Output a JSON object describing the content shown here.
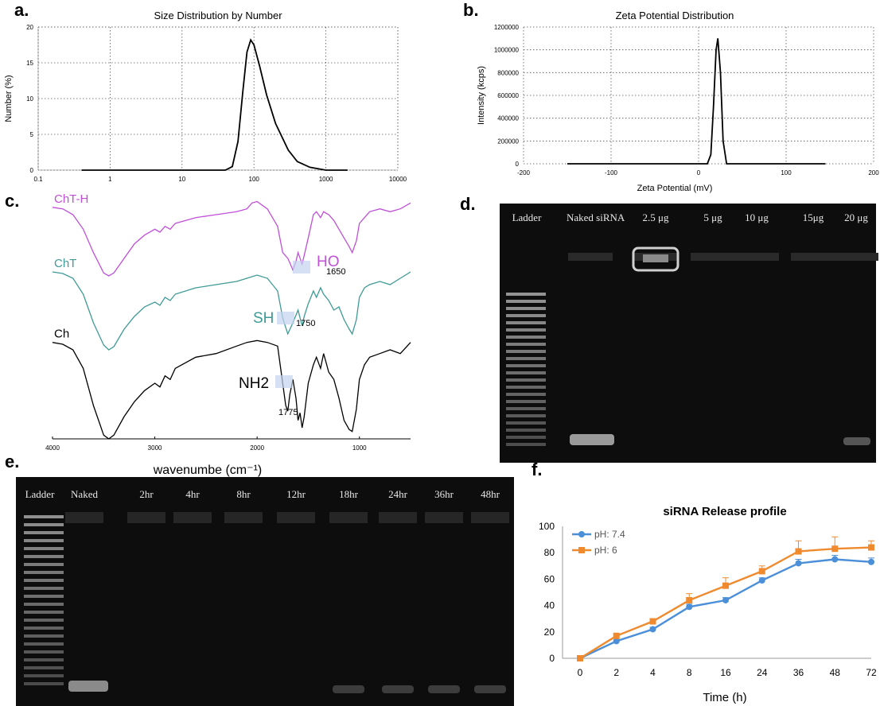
{
  "panels": {
    "a": {
      "letter": "a."
    },
    "b": {
      "letter": "b."
    },
    "c": {
      "letter": "c."
    },
    "d": {
      "letter": "d."
    },
    "e": {
      "letter": "e."
    },
    "f": {
      "letter": "f."
    }
  },
  "gel_d": {
    "lanes": [
      "Ladder",
      "Naked siRNA",
      "2.5 μg",
      "5 μg",
      "10 μg",
      "15μg",
      "20 μg"
    ]
  },
  "gel_e": {
    "lanes": [
      "Ladder",
      "Naked",
      "2hr",
      "4hr",
      "8hr",
      "12hr",
      "18hr",
      "24hr",
      "36hr",
      "48hr"
    ]
  },
  "chart_data": [
    {
      "id": "size",
      "type": "line",
      "title": "Size Distribution by Number",
      "ylabel": "Number (%)",
      "xscale": "log",
      "xlim": [
        0.1,
        10000
      ],
      "ylim": [
        0,
        20
      ],
      "xticks": [
        0.1,
        1,
        10,
        100,
        1000,
        10000
      ],
      "xticklabels": [
        "0.1",
        "1",
        "10",
        "100",
        "1000",
        "10000"
      ],
      "yticks": [
        0,
        5,
        10,
        15,
        20
      ],
      "grid": true,
      "color": "#000000",
      "series": [
        {
          "x": [
            0.4,
            1,
            10,
            40,
            50,
            60,
            70,
            80,
            90,
            100,
            120,
            150,
            200,
            300,
            400,
            600,
            1000,
            2000
          ],
          "y": [
            0,
            0,
            0,
            0,
            0.5,
            4,
            11,
            16.5,
            18.2,
            17.5,
            14.5,
            10.5,
            6.5,
            2.8,
            1.2,
            0.4,
            0,
            0
          ]
        }
      ]
    },
    {
      "id": "zeta",
      "type": "line",
      "title": "Zeta Potential Distribution",
      "xlabel": "Zeta Potential (mV)",
      "ylabel": "Intensity (kcps)",
      "xlim": [
        -200,
        200
      ],
      "ylim": [
        0,
        1200000
      ],
      "xticks": [
        -200,
        -100,
        0,
        100,
        200
      ],
      "yticks": [
        0,
        200000,
        400000,
        600000,
        800000,
        1000000,
        1200000
      ],
      "grid": true,
      "color": "#000000",
      "series": [
        {
          "x": [
            -150,
            0,
            10,
            14,
            17,
            20,
            22,
            25,
            28,
            32,
            40,
            145
          ],
          "y": [
            0,
            0,
            0,
            80000,
            500000,
            1000000,
            1100000,
            800000,
            200000,
            0,
            0,
            0
          ]
        }
      ]
    },
    {
      "id": "ftir",
      "type": "line",
      "xlabel": "wavenumbe (cm⁻¹)",
      "xlim": [
        4000,
        500
      ],
      "xticks": [
        4000,
        3000,
        2000,
        1000
      ],
      "series": [
        {
          "name": "ChT-H",
          "color": "#c050d8",
          "x": [
            4000,
            3900,
            3800,
            3700,
            3600,
            3500,
            3450,
            3400,
            3300,
            3200,
            3100,
            3000,
            2950,
            2900,
            2850,
            2800,
            2600,
            2400,
            2200,
            2100,
            2050,
            2000,
            1900,
            1800,
            1750,
            1700,
            1680,
            1650,
            1620,
            1600,
            1560,
            1540,
            1500,
            1450,
            1420,
            1380,
            1350,
            1300,
            1250,
            1200,
            1150,
            1100,
            1070,
            1030,
            1000,
            950,
            900,
            800,
            700,
            600,
            500
          ],
          "y": [
            93,
            92,
            88,
            78,
            62,
            48,
            46,
            48,
            58,
            68,
            74,
            78,
            76,
            80,
            78,
            82,
            86,
            88,
            90,
            92,
            96,
            97,
            92,
            80,
            62,
            58,
            55,
            50,
            56,
            62,
            54,
            60,
            72,
            88,
            90,
            86,
            90,
            88,
            84,
            78,
            72,
            66,
            62,
            70,
            82,
            86,
            90,
            92,
            90,
            92,
            96
          ]
        },
        {
          "name": "ChT",
          "color": "#3f9a96",
          "x": [
            4000,
            3900,
            3800,
            3700,
            3600,
            3500,
            3450,
            3400,
            3300,
            3200,
            3100,
            3000,
            2950,
            2900,
            2850,
            2800,
            2600,
            2400,
            2200,
            2100,
            2000,
            1900,
            1800,
            1750,
            1700,
            1650,
            1600,
            1560,
            1540,
            1500,
            1450,
            1420,
            1380,
            1350,
            1300,
            1250,
            1200,
            1150,
            1100,
            1070,
            1030,
            1000,
            950,
            900,
            800,
            700,
            600,
            500
          ],
          "y": [
            94,
            93,
            90,
            80,
            62,
            48,
            45,
            47,
            58,
            66,
            72,
            75,
            73,
            78,
            76,
            80,
            84,
            86,
            88,
            90,
            92,
            90,
            82,
            65,
            55,
            62,
            70,
            60,
            66,
            74,
            82,
            78,
            84,
            80,
            76,
            70,
            72,
            64,
            58,
            55,
            64,
            78,
            84,
            86,
            88,
            86,
            90,
            94
          ]
        },
        {
          "name": "Ch",
          "color": "#000000",
          "x": [
            4000,
            3900,
            3800,
            3700,
            3600,
            3500,
            3450,
            3400,
            3300,
            3200,
            3100,
            3000,
            2950,
            2900,
            2850,
            2800,
            2600,
            2400,
            2200,
            2100,
            2000,
            1900,
            1800,
            1750,
            1720,
            1700,
            1680,
            1650,
            1620,
            1600,
            1580,
            1560,
            1540,
            1500,
            1450,
            1420,
            1380,
            1350,
            1320,
            1300,
            1250,
            1200,
            1150,
            1100,
            1070,
            1030,
            1000,
            950,
            900,
            800,
            700,
            600,
            500
          ],
          "y": [
            92,
            91,
            88,
            78,
            58,
            42,
            40,
            42,
            52,
            60,
            66,
            70,
            68,
            74,
            72,
            78,
            84,
            86,
            90,
            92,
            93,
            92,
            90,
            70,
            58,
            55,
            64,
            72,
            62,
            50,
            54,
            46,
            52,
            70,
            80,
            84,
            78,
            86,
            80,
            76,
            72,
            62,
            50,
            45,
            44,
            56,
            72,
            80,
            84,
            86,
            88,
            86,
            92
          ]
        }
      ],
      "annotations": [
        {
          "text": "HO",
          "x": 1650,
          "value": "1650",
          "color": "#c050d8"
        },
        {
          "text": "SH",
          "x": 1750,
          "value": "1750",
          "color": "#3f9a96"
        },
        {
          "text": "NH2",
          "x": 1775,
          "value": "1775",
          "color": "#000000"
        }
      ]
    },
    {
      "id": "release",
      "type": "line",
      "title": "siRNA Release profile",
      "xlabel": "Time (h)",
      "categories": [
        "0",
        "2",
        "4",
        "8",
        "16",
        "24",
        "36",
        "48",
        "72"
      ],
      "ylim": [
        0,
        100
      ],
      "yticks": [
        0,
        20,
        40,
        60,
        80,
        100
      ],
      "grid": false,
      "legend": "top-left",
      "series": [
        {
          "name": "pH: 7.4",
          "color": "#4a8fd8",
          "values": [
            0,
            13,
            22,
            39,
            44,
            59,
            72,
            75,
            73
          ],
          "errors": [
            0,
            1,
            1.5,
            2,
            2,
            2,
            3,
            3,
            3
          ]
        },
        {
          "name": "pH: 6",
          "color": "#ef8a2e",
          "values": [
            0,
            17,
            28,
            44,
            55,
            66,
            81,
            83,
            84
          ],
          "errors": [
            0,
            1,
            1.5,
            5,
            6,
            4,
            8,
            9,
            5
          ]
        }
      ]
    }
  ]
}
